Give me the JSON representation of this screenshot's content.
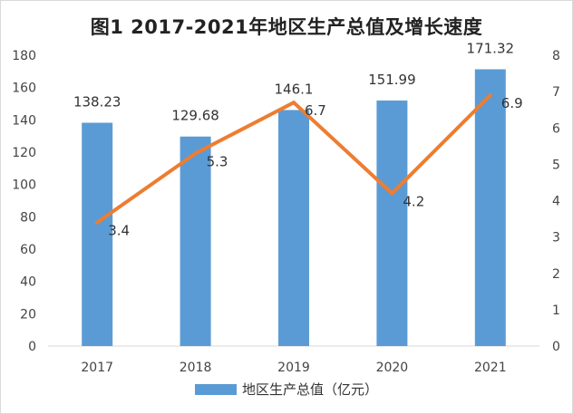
{
  "chart_data": {
    "type": "bar",
    "title": "图1  2017-2021年地区生产总值及增长速度",
    "categories": [
      "2017",
      "2018",
      "2019",
      "2020",
      "2021"
    ],
    "series": [
      {
        "name": "地区生产总值（亿元）",
        "type": "bar",
        "axis": "left",
        "values": [
          138.23,
          129.68,
          146.1,
          151.99,
          171.32
        ],
        "labels": [
          "138.23",
          "129.68",
          "146.1",
          "151.99",
          "171.32"
        ],
        "color": "#5B9BD5"
      },
      {
        "type": "line",
        "axis": "right",
        "values": [
          3.4,
          5.3,
          6.7,
          4.2,
          6.9
        ],
        "labels": [
          "3.4",
          "5.3",
          "6.7",
          "4.2",
          "6.9"
        ],
        "color": "#ED7D31"
      }
    ],
    "y_left": {
      "min": 0,
      "max": 180,
      "ticks": [
        "0",
        "20",
        "40",
        "60",
        "80",
        "100",
        "120",
        "140",
        "160",
        "180"
      ]
    },
    "y_right": {
      "min": 0,
      "max": 8,
      "ticks": [
        "0",
        "1",
        "2",
        "3",
        "4",
        "5",
        "6",
        "7",
        "8"
      ]
    },
    "grid": false,
    "legend_position": "bottom"
  }
}
